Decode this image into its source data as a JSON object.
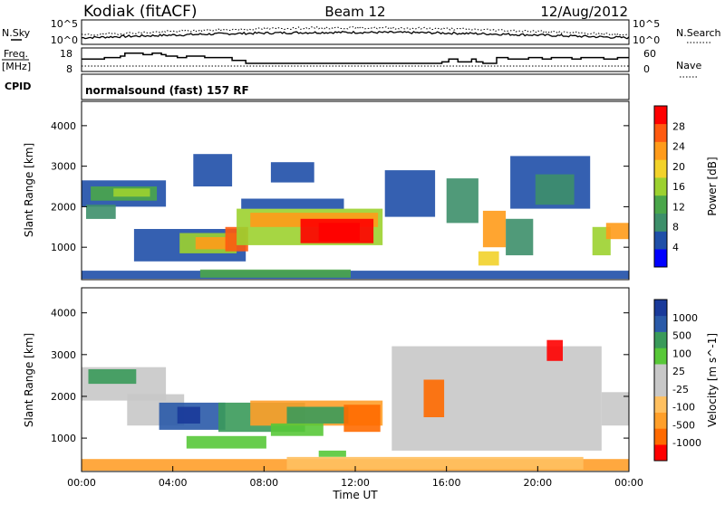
{
  "header": {
    "station": "Kodiak (fitACF)",
    "beam": "Beam 12",
    "date": "12/Aug/2012"
  },
  "left_labels": {
    "nsky": "N.Sky",
    "freq": "Freq.",
    "freq_unit": "[MHz]",
    "cpid": "CPID"
  },
  "right_labels": {
    "nsearch": "N.Search",
    "nave": "Nave"
  },
  "cpid_text": "normalsound (fast) 157 RF",
  "colors": {
    "power": [
      "#0000ff",
      "#1f4fa8",
      "#3d8f6a",
      "#4aa64a",
      "#9cd12f",
      "#f2d22a",
      "#ff9b1a",
      "#ff5a10",
      "#ff0000"
    ],
    "velocity": [
      "#ff0000",
      "#ff6a00",
      "#ff9f2a",
      "#ffc060",
      "#c8c8c8",
      "#c8c8c8",
      "#58c838",
      "#3a9a5a",
      "#2a5aa8",
      "#1a3a9a"
    ]
  },
  "chart_data": [
    {
      "type": "line",
      "panel": "noise",
      "ylabel_left": "N.Sky",
      "ylabel_right": "N.Search",
      "ytick_labels": [
        "10^5",
        "10^0"
      ],
      "xlim": [
        "00:00",
        "24:00"
      ]
    },
    {
      "type": "line",
      "panel": "frequency",
      "ylabel_left": "[MHz]",
      "yticks_left": [
        8,
        18
      ],
      "ylabel_right": "Nave",
      "yticks_right": [
        0,
        60
      ],
      "step_hours": [
        0,
        1,
        1.7,
        1.9,
        2.7,
        3.1,
        3.5,
        3.7,
        4.2,
        4.6,
        5.4,
        6.6,
        7.2,
        15.8,
        16.1,
        16.5,
        16.7,
        17.1,
        17.3,
        17.6,
        18.2,
        18.7,
        19.6,
        20.2,
        20.6,
        20.9,
        21.5,
        21.9,
        22.9,
        23.5,
        24.0
      ],
      "freq_mhz": [
        13.5,
        14.5,
        15.5,
        17.5,
        16.5,
        17.5,
        16.5,
        15.5,
        14.5,
        15.5,
        14.5,
        12.5,
        10.5,
        11.5,
        13.5,
        11.5,
        11.5,
        13.5,
        11.5,
        10.5,
        14.5,
        13.5,
        14.5,
        13.5,
        14.5,
        14.5,
        13.5,
        14.5,
        13.5,
        14.5
      ]
    },
    {
      "type": "heatmap",
      "panel": "power",
      "ylabel": "Slant Range [km]",
      "yticks": [
        1000,
        2000,
        3000,
        4000
      ],
      "ylim": [
        200,
        4600
      ],
      "colorbar_label": "Power [dB]",
      "colorbar_ticks": [
        4,
        8,
        12,
        16,
        20,
        24,
        28
      ],
      "colorbar_range": [
        0,
        32
      ],
      "patches": [
        {
          "t0": 0.0,
          "t1": 3.7,
          "r0": 2000,
          "r1": 2650,
          "level": 1
        },
        {
          "t0": 0.4,
          "t1": 3.3,
          "r0": 2150,
          "r1": 2500,
          "level": 3
        },
        {
          "t0": 1.4,
          "t1": 3.0,
          "r0": 2250,
          "r1": 2450,
          "level": 4
        },
        {
          "t0": 0.2,
          "t1": 1.5,
          "r0": 1700,
          "r1": 2050,
          "level": 2
        },
        {
          "t0": 2.3,
          "t1": 7.2,
          "r0": 650,
          "r1": 1450,
          "level": 1
        },
        {
          "t0": 4.3,
          "t1": 6.8,
          "r0": 850,
          "r1": 1350,
          "level": 4
        },
        {
          "t0": 5.0,
          "t1": 6.4,
          "r0": 950,
          "r1": 1250,
          "level": 6
        },
        {
          "t0": 6.3,
          "t1": 7.3,
          "r0": 900,
          "r1": 1500,
          "level": 7
        },
        {
          "t0": 6.8,
          "t1": 13.2,
          "r0": 1050,
          "r1": 1950,
          "level": 4
        },
        {
          "t0": 7.4,
          "t1": 13.0,
          "r0": 1500,
          "r1": 1850,
          "level": 6
        },
        {
          "t0": 9.6,
          "t1": 12.8,
          "r0": 1100,
          "r1": 1700,
          "level": 8
        },
        {
          "t0": 10.4,
          "t1": 12.2,
          "r0": 1150,
          "r1": 1600,
          "level": 8
        },
        {
          "t0": 7.0,
          "t1": 11.5,
          "r0": 1950,
          "r1": 2200,
          "level": 1
        },
        {
          "t0": 4.9,
          "t1": 6.6,
          "r0": 2500,
          "r1": 3300,
          "level": 1
        },
        {
          "t0": 8.3,
          "t1": 10.2,
          "r0": 2600,
          "r1": 3100,
          "level": 1
        },
        {
          "t0": 13.3,
          "t1": 15.5,
          "r0": 1750,
          "r1": 2900,
          "level": 1
        },
        {
          "t0": 16.0,
          "t1": 17.4,
          "r0": 1600,
          "r1": 2700,
          "level": 2
        },
        {
          "t0": 17.6,
          "t1": 18.6,
          "r0": 1000,
          "r1": 1900,
          "level": 6
        },
        {
          "t0": 17.4,
          "t1": 18.3,
          "r0": 550,
          "r1": 900,
          "level": 5
        },
        {
          "t0": 18.8,
          "t1": 22.3,
          "r0": 1950,
          "r1": 3250,
          "level": 1
        },
        {
          "t0": 19.9,
          "t1": 21.6,
          "r0": 2050,
          "r1": 2800,
          "level": 2
        },
        {
          "t0": 18.6,
          "t1": 19.8,
          "r0": 800,
          "r1": 1700,
          "level": 2
        },
        {
          "t0": 22.4,
          "t1": 23.2,
          "r0": 800,
          "r1": 1500,
          "level": 4
        },
        {
          "t0": 23.0,
          "t1": 24.0,
          "r0": 1200,
          "r1": 1600,
          "level": 6
        },
        {
          "t0": 0.0,
          "t1": 24.0,
          "r0": 220,
          "r1": 420,
          "level": 1
        },
        {
          "t0": 5.2,
          "t1": 11.8,
          "r0": 250,
          "r1": 450,
          "level": 3
        }
      ]
    },
    {
      "type": "heatmap",
      "panel": "velocity",
      "ylabel": "Slant Range [km]",
      "yticks": [
        1000,
        2000,
        3000,
        4000
      ],
      "ylim": [
        200,
        4600
      ],
      "xticks": [
        "00:00",
        "04:00",
        "08:00",
        "12:00",
        "16:00",
        "20:00",
        "00:00"
      ],
      "xlabel": "Time UT",
      "colorbar_label": "Velocity [m s^-1]",
      "colorbar_ticks": [
        -1000,
        -500,
        -100,
        -25,
        25,
        100,
        500,
        1000
      ],
      "patches": [
        {
          "t0": 0.0,
          "t1": 3.7,
          "r0": 1900,
          "r1": 2700,
          "level": 4
        },
        {
          "t0": 0.3,
          "t1": 2.4,
          "r0": 2300,
          "r1": 2650,
          "level": 7
        },
        {
          "t0": 2.0,
          "t1": 4.5,
          "r0": 1300,
          "r1": 2050,
          "level": 4
        },
        {
          "t0": 3.4,
          "t1": 6.3,
          "r0": 1200,
          "r1": 1850,
          "level": 8
        },
        {
          "t0": 4.2,
          "t1": 5.2,
          "r0": 1350,
          "r1": 1750,
          "level": 9
        },
        {
          "t0": 6.0,
          "t1": 9.8,
          "r0": 1150,
          "r1": 1850,
          "level": 7
        },
        {
          "t0": 7.4,
          "t1": 13.2,
          "r0": 1300,
          "r1": 1900,
          "level": 2
        },
        {
          "t0": 9.0,
          "t1": 11.7,
          "r0": 1350,
          "r1": 1750,
          "level": 7
        },
        {
          "t0": 11.5,
          "t1": 13.1,
          "r0": 1150,
          "r1": 1800,
          "level": 1
        },
        {
          "t0": 4.6,
          "t1": 8.1,
          "r0": 750,
          "r1": 1050,
          "level": 6
        },
        {
          "t0": 8.3,
          "t1": 10.6,
          "r0": 1050,
          "r1": 1350,
          "level": 6
        },
        {
          "t0": 10.4,
          "t1": 11.6,
          "r0": 550,
          "r1": 700,
          "level": 6
        },
        {
          "t0": 13.6,
          "t1": 22.8,
          "r0": 700,
          "r1": 3200,
          "level": 4
        },
        {
          "t0": 15.0,
          "t1": 15.9,
          "r0": 1500,
          "r1": 2400,
          "level": 1
        },
        {
          "t0": 20.4,
          "t1": 21.1,
          "r0": 2850,
          "r1": 3350,
          "level": 0
        },
        {
          "t0": 22.8,
          "t1": 24.0,
          "r0": 1300,
          "r1": 2100,
          "level": 4
        },
        {
          "t0": 0.0,
          "t1": 24.0,
          "r0": 220,
          "r1": 500,
          "level": 2
        },
        {
          "t0": 9.0,
          "t1": 22.0,
          "r0": 250,
          "r1": 550,
          "level": 3
        }
      ]
    }
  ]
}
